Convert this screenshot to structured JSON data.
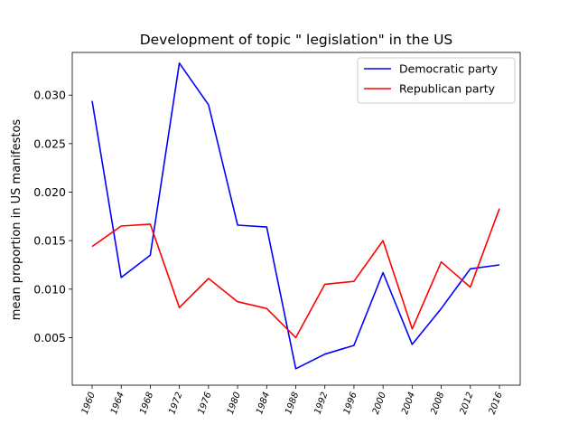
{
  "chart_data": {
    "type": "line",
    "title": "Development of topic \" legislation\" in the US",
    "xlabel": "",
    "ylabel": "mean proportion in US manifestos",
    "categories": [
      "1960",
      "1964",
      "1968",
      "1972",
      "1976",
      "1980",
      "1984",
      "1988",
      "1992",
      "1996",
      "2000",
      "2004",
      "2008",
      "2012",
      "2016"
    ],
    "ylim": [
      0.0001,
      0.0344
    ],
    "yticks": [
      "0.005",
      "0.010",
      "0.015",
      "0.020",
      "0.025",
      "0.030"
    ],
    "grid": false,
    "legend_position": "top-right",
    "series": [
      {
        "name": "Democratic party",
        "color": "#0000ff",
        "values": [
          0.0294,
          0.0112,
          0.0135,
          0.0333,
          0.029,
          0.0166,
          0.0164,
          0.0018,
          0.0033,
          0.0042,
          0.0117,
          0.0043,
          0.008,
          0.0121,
          0.0125
        ]
      },
      {
        "name": "Republican party",
        "color": "#ff0000",
        "values": [
          0.0144,
          0.0165,
          0.0167,
          0.0081,
          0.0111,
          0.0087,
          0.008,
          0.005,
          0.0105,
          0.0108,
          0.015,
          0.0059,
          0.0128,
          0.0102,
          0.0183
        ]
      }
    ]
  }
}
